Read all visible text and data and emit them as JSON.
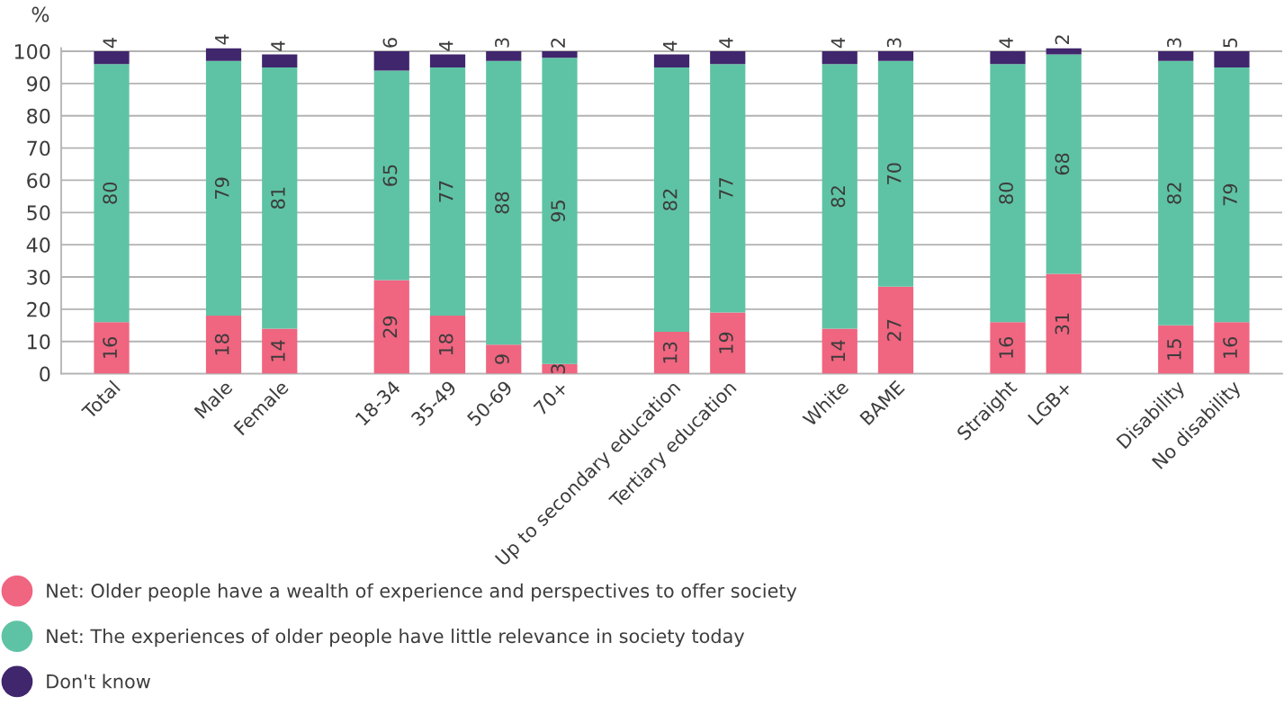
{
  "chart_data": {
    "type": "bar",
    "stacked": true,
    "ylabel": "%",
    "categories": [
      "Total",
      null,
      "Male",
      "Female",
      null,
      "18-34",
      "35-49",
      "50-69",
      "70+",
      null,
      "Up to secondary education",
      "Tertiary education",
      null,
      "White",
      "BAME",
      null,
      "Straight",
      "LGB+",
      null,
      "Disability",
      "No disability"
    ],
    "series": [
      {
        "name": "Net: Older people have a wealth of experience and perspectives to offer society",
        "color": "#f06580",
        "values": [
          16,
          null,
          18,
          14,
          null,
          29,
          18,
          9,
          3,
          null,
          13,
          19,
          null,
          14,
          27,
          null,
          16,
          31,
          null,
          15,
          16
        ]
      },
      {
        "name": "Net: The experiences of older people have little relevance in society today",
        "color": "#5ec3a4",
        "values": [
          80,
          null,
          79,
          81,
          null,
          65,
          77,
          88,
          95,
          null,
          82,
          77,
          null,
          82,
          70,
          null,
          80,
          68,
          null,
          82,
          79
        ]
      },
      {
        "name": "Don't know",
        "color": "#40266d",
        "values": [
          4,
          null,
          4,
          4,
          null,
          6,
          4,
          3,
          2,
          null,
          4,
          4,
          null,
          4,
          3,
          null,
          4,
          2,
          null,
          3,
          5
        ]
      }
    ],
    "ylim": [
      0,
      101
    ],
    "yticks": [
      0,
      10,
      20,
      30,
      40,
      50,
      60,
      70,
      80,
      90,
      100
    ],
    "grid": "y",
    "legend": "bottom left",
    "data_labels": true
  }
}
